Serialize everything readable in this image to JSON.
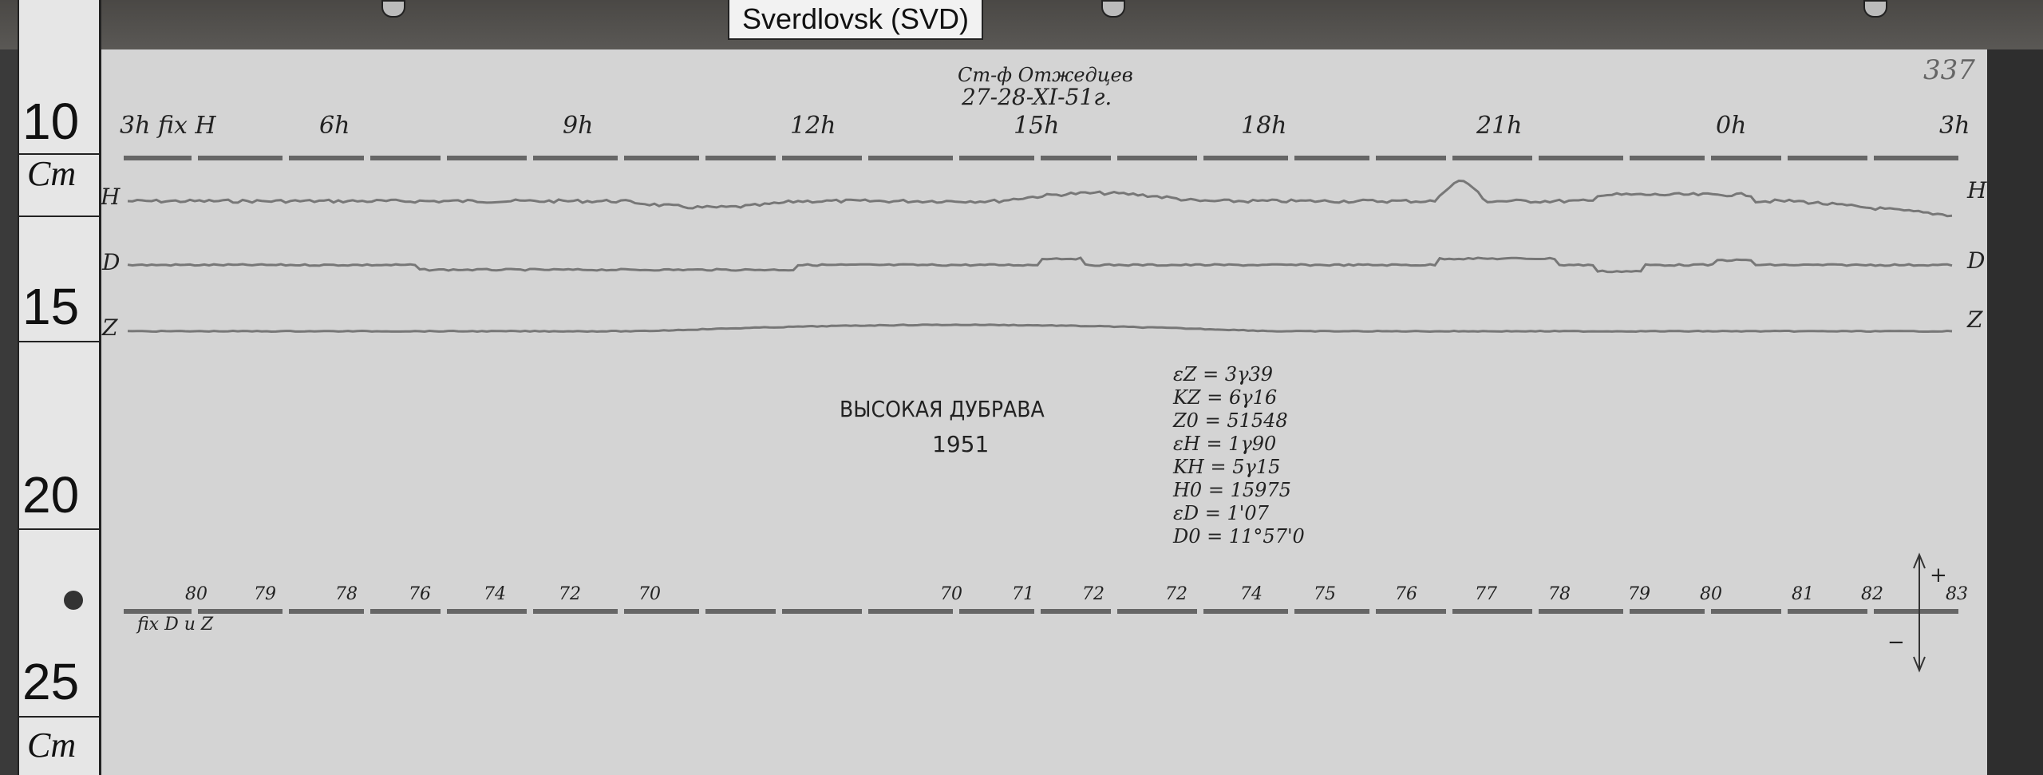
{
  "station_label": "Sverdlovsk (SVD)",
  "ruler": {
    "marks": [
      "10",
      "15",
      "20",
      "25"
    ],
    "unit": "Cm"
  },
  "sheet_number": "337",
  "header": {
    "observer": "Ст-ф Отжедцев",
    "date": "27-28-XI-51г."
  },
  "hour_labels": [
    "3h fix H",
    "6h",
    "9h",
    "12h",
    "15h",
    "18h",
    "21h",
    "0h",
    "3h"
  ],
  "trace_labels": {
    "H_left": "H",
    "D_left": "D",
    "Z_left": "Z",
    "H_right": "H",
    "D_right": "D",
    "Z_right": "Z"
  },
  "title": {
    "station": "ВЫСОКАЯ ДУБРАВА",
    "year": "1951"
  },
  "constants": [
    "εZ = 3γ39",
    "KZ = 6γ16",
    "Z0 = 51548",
    "εH = 1γ90",
    "KH = 5γ15",
    "H0 = 15975",
    "εD = 1'07",
    "D0 = 11°57'0"
  ],
  "temperature_labels": [
    "80",
    "79",
    "78",
    "76",
    "74",
    "72",
    "70",
    "70",
    "71",
    "72",
    "72",
    "74",
    "75",
    "76",
    "77",
    "78",
    "79",
    "80",
    "81",
    "82",
    "83"
  ],
  "bottom_fix_label": "fix D и Z",
  "arrow": {
    "plus": "+",
    "minus": "−"
  }
}
